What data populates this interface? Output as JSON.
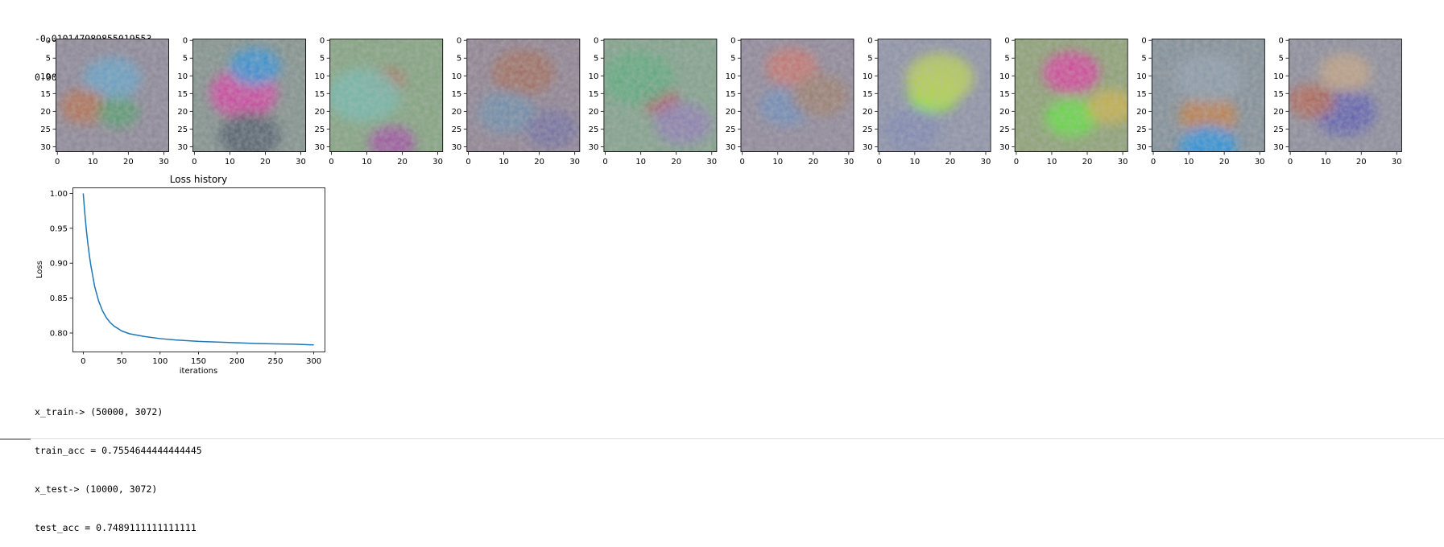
{
  "output_top": {
    "lines": [
      "-0.010147989855019553",
      "0.009720820945505066"
    ]
  },
  "weight_images": {
    "count": 10,
    "x_ticks": [
      "0",
      "10",
      "20",
      "30"
    ],
    "y_ticks": [
      "0",
      "5",
      "10",
      "15",
      "20",
      "25",
      "30"
    ],
    "tiles": [
      {
        "base": "#8a8496",
        "blobs": [
          {
            "c": "#5fa0c8"
          },
          {
            "c": "#b46a4a"
          },
          {
            "c": "#4f9a6a"
          }
        ]
      },
      {
        "base": "#7f8f8a",
        "blobs": [
          {
            "c": "#d43ca0"
          },
          {
            "c": "#2e8fd8"
          },
          {
            "c": "#4a5a66"
          }
        ]
      },
      {
        "base": "#7fa27c",
        "blobs": [
          {
            "c": "#b0604e"
          },
          {
            "c": "#6fb8a8"
          },
          {
            "c": "#9c4aa0"
          }
        ]
      },
      {
        "base": "#8c7f90",
        "blobs": [
          {
            "c": "#a0685a"
          },
          {
            "c": "#6a8aa8"
          },
          {
            "c": "#6f6aa0"
          }
        ]
      },
      {
        "base": "#7ea088",
        "blobs": [
          {
            "c": "#b0405a"
          },
          {
            "c": "#5aa87a"
          },
          {
            "c": "#8a7ab0"
          }
        ]
      },
      {
        "base": "#8c8498",
        "blobs": [
          {
            "c": "#c8706a"
          },
          {
            "c": "#6a88b8"
          },
          {
            "c": "#9a7a6a"
          }
        ]
      },
      {
        "base": "#8a8fa6",
        "blobs": [
          {
            "c": "#8cf020"
          },
          {
            "c": "#b8d050"
          },
          {
            "c": "#7a84b0"
          }
        ]
      },
      {
        "base": "#8aa070",
        "blobs": [
          {
            "c": "#d83a9a"
          },
          {
            "c": "#5ee03a"
          },
          {
            "c": "#c8b040"
          }
        ]
      },
      {
        "base": "#7f8c96",
        "blobs": [
          {
            "c": "#c07a40"
          },
          {
            "c": "#2090e0"
          },
          {
            "c": "#8a9aa8"
          }
        ]
      },
      {
        "base": "#8a8a9a",
        "blobs": [
          {
            "c": "#5a5ab0"
          },
          {
            "c": "#b06050"
          },
          {
            "c": "#c0a080"
          }
        ]
      }
    ]
  },
  "chart_data": {
    "type": "line",
    "title": "Loss history",
    "xlabel": "iterations",
    "ylabel": "Loss",
    "xlim": [
      -14,
      314
    ],
    "ylim": [
      0.7735,
      1.0085
    ],
    "x_ticks": [
      0,
      50,
      100,
      150,
      200,
      250,
      300
    ],
    "y_ticks": [
      0.8,
      0.85,
      0.9,
      0.95,
      1.0
    ],
    "y_tick_labels": [
      "0.80",
      "0.85",
      "0.90",
      "0.95",
      "1.00"
    ],
    "grid": false,
    "series": [
      {
        "color": "#1f77b4",
        "x": [
          0,
          2,
          4,
          6,
          8,
          10,
          15,
          20,
          25,
          30,
          35,
          40,
          50,
          60,
          70,
          80,
          100,
          120,
          150,
          175,
          200,
          225,
          250,
          275,
          300
        ],
        "y": [
          1.0,
          0.972,
          0.948,
          0.928,
          0.911,
          0.896,
          0.866,
          0.846,
          0.832,
          0.822,
          0.815,
          0.81,
          0.803,
          0.799,
          0.797,
          0.795,
          0.792,
          0.79,
          0.788,
          0.787,
          0.786,
          0.785,
          0.7845,
          0.784,
          0.783
        ]
      }
    ]
  },
  "output_bottom": {
    "lines": [
      "x_train-> (50000, 3072)",
      "train_acc = 0.7554644444444445",
      "x_test-> (10000, 3072)",
      "test_acc = 0.7489111111111111"
    ]
  }
}
